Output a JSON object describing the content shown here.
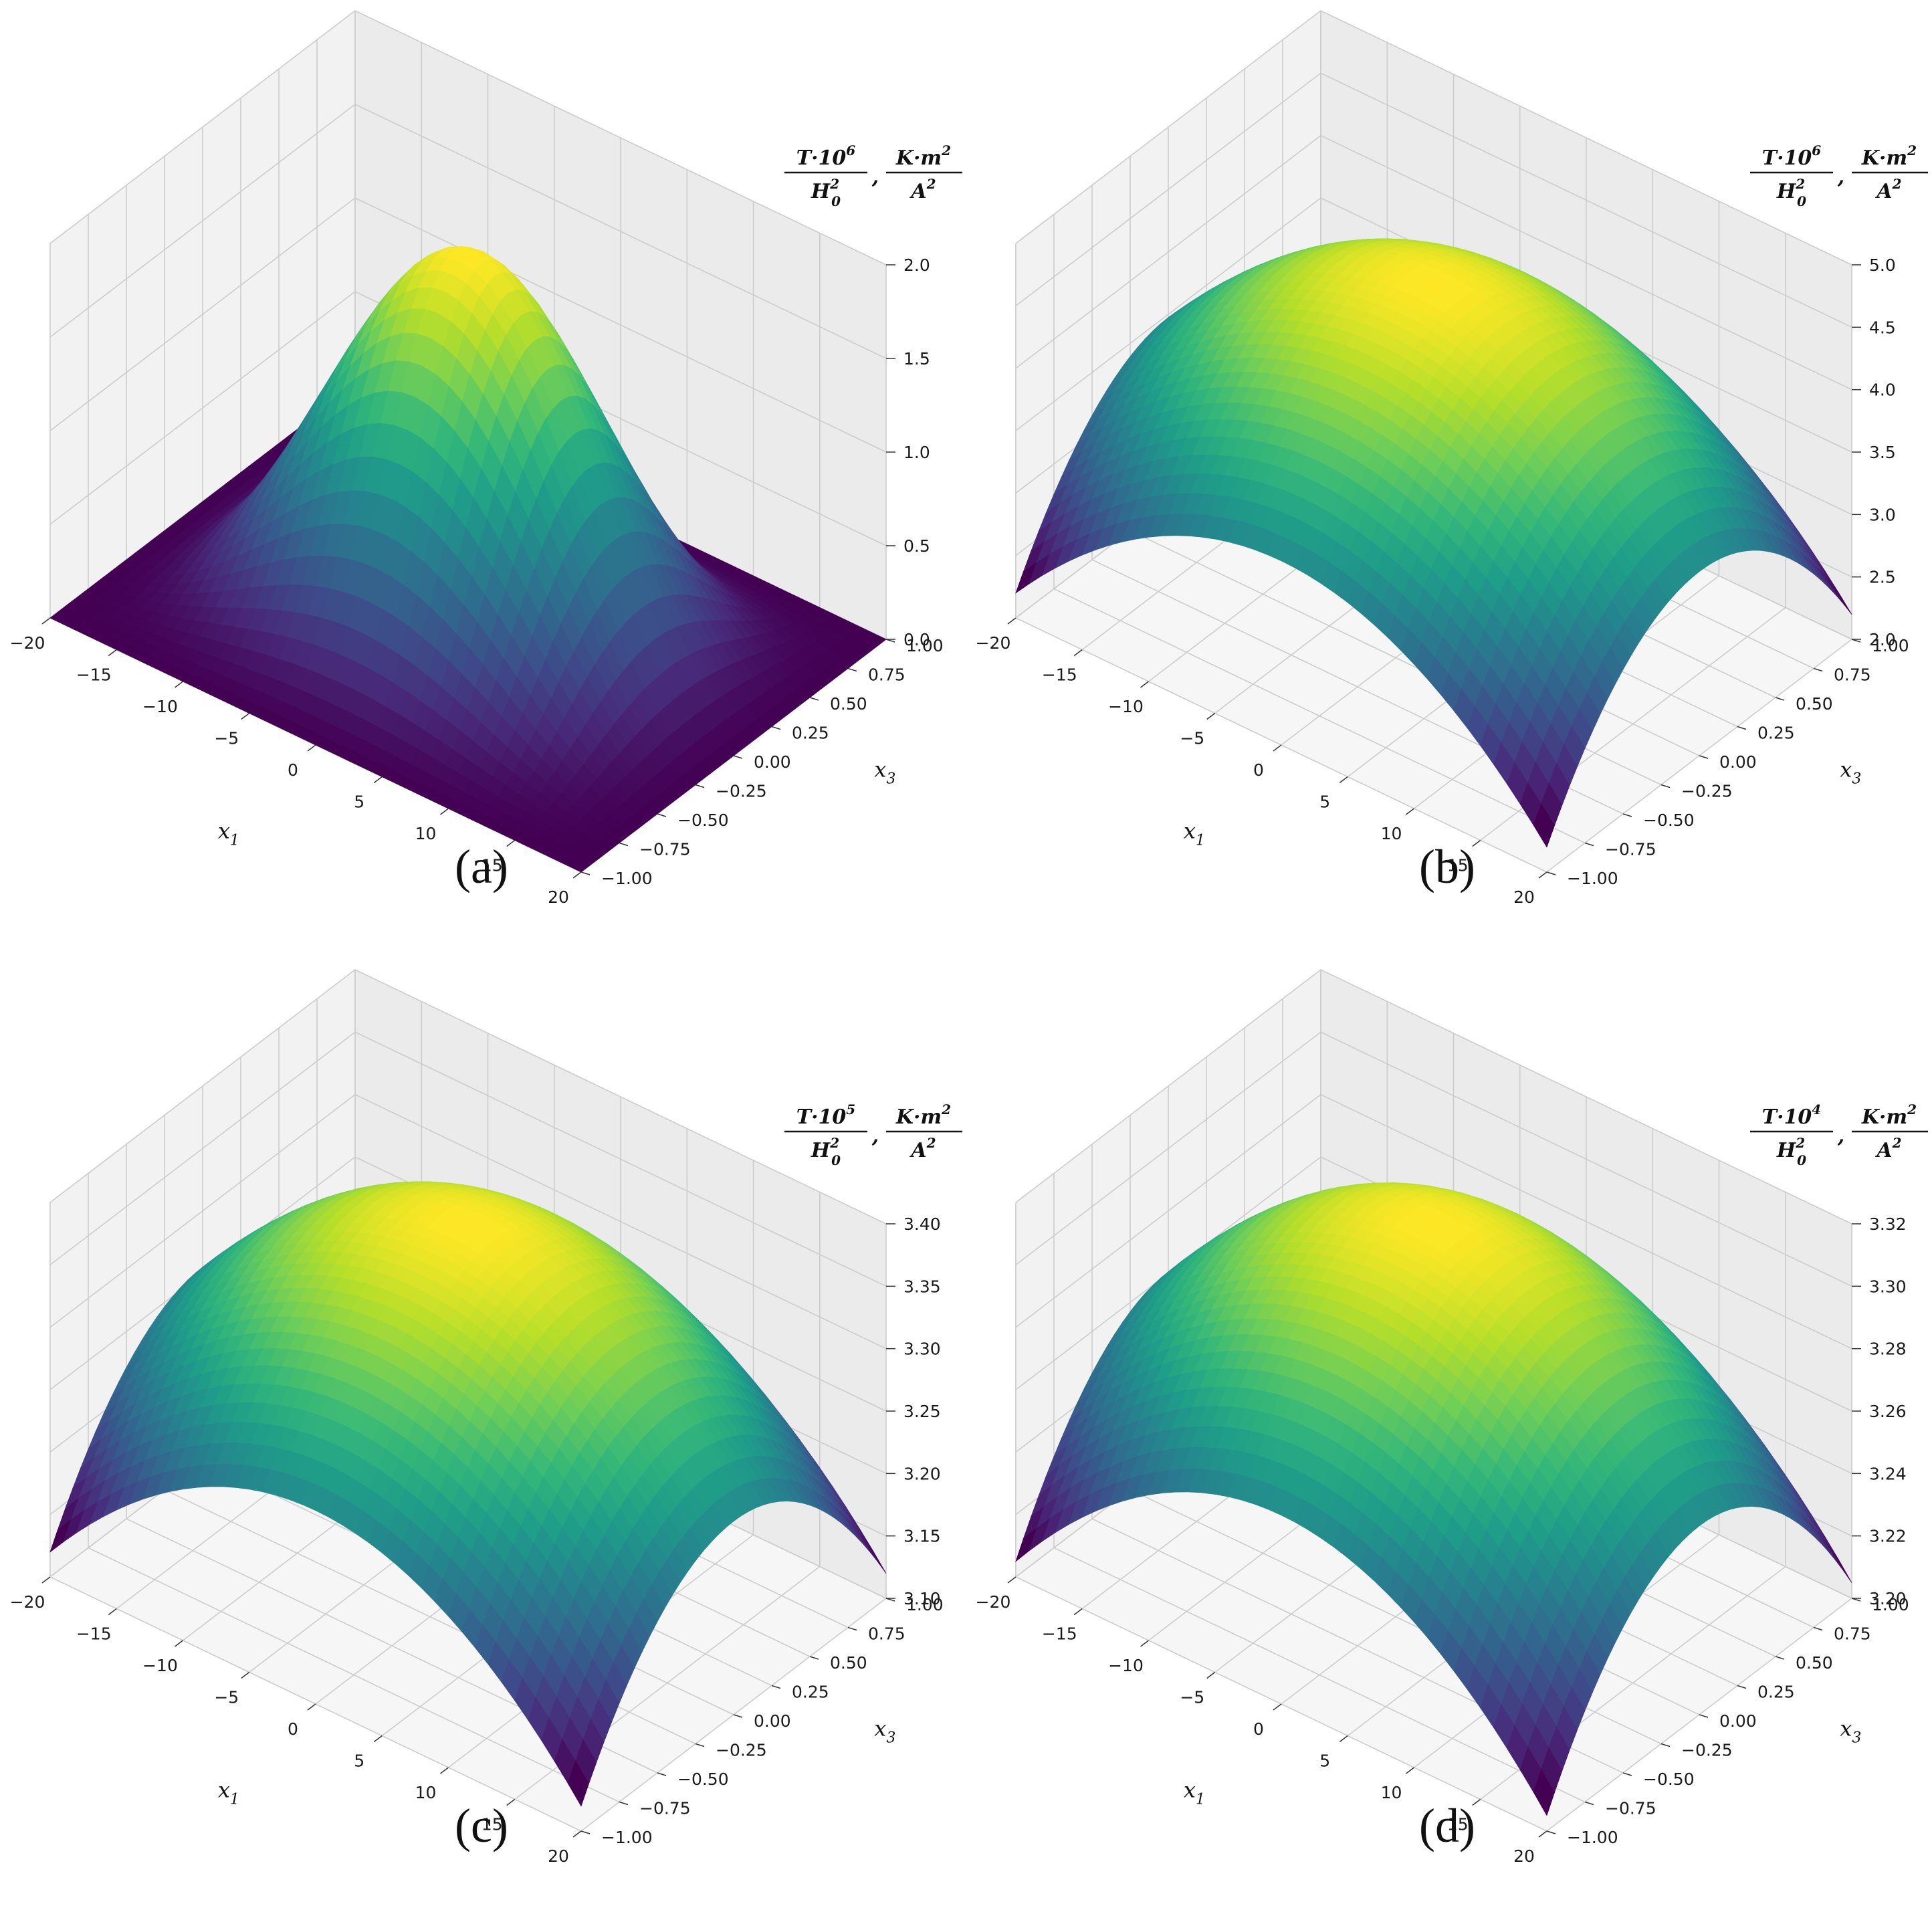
{
  "chart_data": [
    {
      "type": "surface",
      "panel_label": "(a)",
      "xlabel": "x1",
      "ylabel": "x3",
      "zlabel": {
        "num_var": "T·10",
        "num_exp": "6",
        "den_var": "H",
        "den_sub": "0",
        "den_sup": "2",
        "unit_num": "K·m",
        "unit_exp": "2",
        "unit_den": "A",
        "unit_den_exp": "2",
        "sep": ","
      },
      "xlim": [
        -20,
        20
      ],
      "ylim": [
        -1,
        1
      ],
      "zlim": [
        0,
        2
      ],
      "xticks": [
        "−20",
        "−15",
        "−10",
        "−5",
        "0",
        "5",
        "10",
        "15",
        "20"
      ],
      "yticks": [
        "−1.00",
        "−0.75",
        "−0.50",
        "−0.25",
        "0.00",
        "0.25",
        "0.50",
        "0.75",
        "1.00"
      ],
      "zticks": [
        "0.0",
        "0.5",
        "1.0",
        "1.5",
        "2.0"
      ],
      "surface": {
        "z_center": 2.0,
        "z_min": 0.0,
        "shape": "cos-squared dome, x1 profile cos²(πx1/40), x3 profile cos²(πx3/2)"
      },
      "colormap": "viridis"
    },
    {
      "type": "surface",
      "panel_label": "(b)",
      "xlabel": "x1",
      "ylabel": "x3",
      "zlabel": {
        "num_var": "T·10",
        "num_exp": "6",
        "den_var": "H",
        "den_sub": "0",
        "den_sup": "2",
        "unit_num": "K·m",
        "unit_exp": "2",
        "unit_den": "A",
        "unit_den_exp": "2",
        "sep": ","
      },
      "xlim": [
        -20,
        20
      ],
      "ylim": [
        -1,
        1
      ],
      "zlim": [
        2.0,
        5.0
      ],
      "xticks": [
        "−20",
        "−15",
        "−10",
        "−5",
        "0",
        "5",
        "10",
        "15",
        "20"
      ],
      "yticks": [
        "−1.00",
        "−0.75",
        "−0.50",
        "−0.25",
        "0.00",
        "0.25",
        "0.50",
        "0.75",
        "1.00"
      ],
      "zticks": [
        "2.0",
        "2.5",
        "3.0",
        "3.5",
        "4.0",
        "4.5",
        "5.0"
      ],
      "surface": {
        "z_center": 4.75,
        "z_corner": 2.2,
        "shape": "parabolic dome"
      },
      "colormap": "viridis"
    },
    {
      "type": "surface",
      "panel_label": "(c)",
      "xlabel": "x1",
      "ylabel": "x3",
      "zlabel": {
        "num_var": "T·10",
        "num_exp": "5",
        "den_var": "H",
        "den_sub": "0",
        "den_sup": "2",
        "unit_num": "K·m",
        "unit_exp": "2",
        "unit_den": "A",
        "unit_den_exp": "2",
        "sep": ","
      },
      "xlim": [
        -20,
        20
      ],
      "ylim": [
        -1,
        1
      ],
      "zlim": [
        3.1,
        3.4
      ],
      "xticks": [
        "−20",
        "−15",
        "−10",
        "−5",
        "0",
        "5",
        "10",
        "15",
        "20"
      ],
      "yticks": [
        "−1.00",
        "−0.75",
        "−0.50",
        "−0.25",
        "0.00",
        "0.25",
        "0.50",
        "0.75",
        "1.00"
      ],
      "zticks": [
        "3.10",
        "3.15",
        "3.20",
        "3.25",
        "3.30",
        "3.35",
        "3.40"
      ],
      "surface": {
        "z_center": 3.39,
        "z_corner": 3.12,
        "shape": "parabolic dome"
      },
      "colormap": "viridis"
    },
    {
      "type": "surface",
      "panel_label": "(d)",
      "xlabel": "x1",
      "ylabel": "x3",
      "zlabel": {
        "num_var": "T·10",
        "num_exp": "4",
        "den_var": "H",
        "den_sub": "0",
        "den_sup": "2",
        "unit_num": "K·m",
        "unit_exp": "2",
        "unit_den": "A",
        "unit_den_exp": "2",
        "sep": ","
      },
      "xlim": [
        -20,
        20
      ],
      "ylim": [
        -1,
        1
      ],
      "zlim": [
        3.2,
        3.32
      ],
      "xticks": [
        "−20",
        "−15",
        "−10",
        "−5",
        "0",
        "5",
        "10",
        "15",
        "20"
      ],
      "yticks": [
        "−1.00",
        "−0.75",
        "−0.50",
        "−0.25",
        "0.00",
        "0.25",
        "0.50",
        "0.75",
        "1.00"
      ],
      "zticks": [
        "3.20",
        "3.22",
        "3.24",
        "3.26",
        "3.28",
        "3.30",
        "3.32"
      ],
      "surface": {
        "z_center": 3.316,
        "z_corner": 3.205,
        "shape": "parabolic dome"
      },
      "colormap": "viridis"
    }
  ]
}
